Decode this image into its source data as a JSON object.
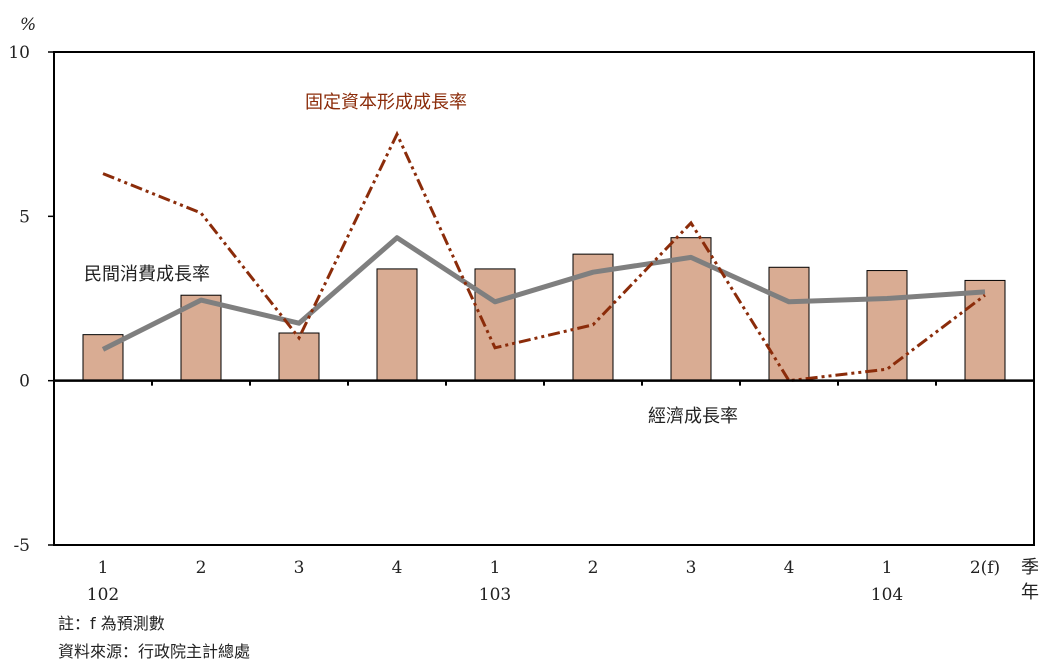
{
  "chart_data": {
    "type": "bar",
    "y_unit_label": "%",
    "ylim": [
      -5,
      10
    ],
    "yticks": [
      "10",
      "5",
      "0",
      "-5"
    ],
    "quarters": [
      "1",
      "2",
      "3",
      "4",
      "1",
      "2",
      "3",
      "4",
      "1",
      "2(f)"
    ],
    "years": [
      "102",
      "103",
      "104"
    ],
    "x_axis_unit_label": [
      "季",
      "年"
    ],
    "series": [
      {
        "name": "經濟成長率",
        "kind": "bar",
        "color": "#d9ac93",
        "values": [
          1.4,
          2.6,
          1.45,
          3.4,
          3.4,
          3.85,
          4.35,
          3.45,
          3.35,
          3.05
        ]
      },
      {
        "name": "民間消費成長率",
        "kind": "line",
        "color": "#7f7f7f",
        "values": [
          0.95,
          2.45,
          1.75,
          4.35,
          2.4,
          3.3,
          3.75,
          2.4,
          2.5,
          2.7
        ]
      },
      {
        "name": "固定資本形成成長率",
        "kind": "line-dashdotdot",
        "color": "#8b2c0a",
        "values": [
          6.3,
          5.1,
          1.3,
          7.5,
          1.0,
          1.7,
          4.8,
          0.0,
          0.35,
          2.6
        ]
      }
    ]
  },
  "notes": {
    "footnote": "註：f 為預測數",
    "source": "資料來源：行政院主計總處"
  }
}
